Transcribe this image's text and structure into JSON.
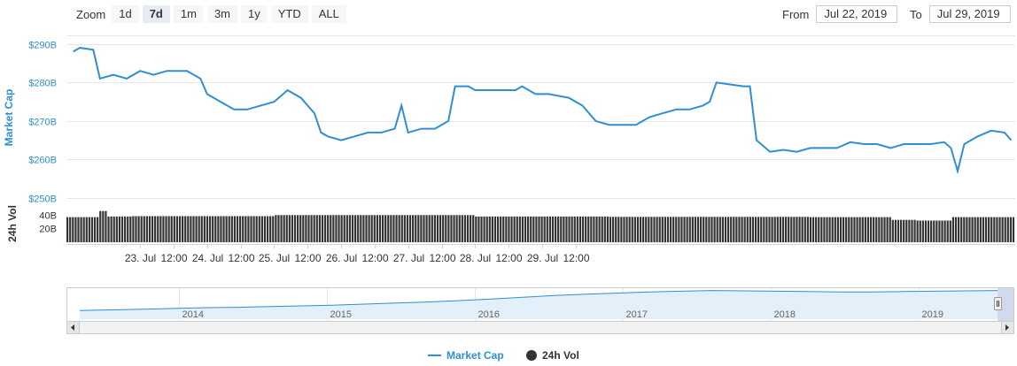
{
  "zoom": {
    "label": "Zoom",
    "buttons": [
      "1d",
      "7d",
      "1m",
      "3m",
      "1y",
      "YTD",
      "ALL"
    ],
    "active": "7d"
  },
  "range": {
    "from_label": "From",
    "from_value": "Jul 22, 2019",
    "to_label": "To",
    "to_value": "Jul 29, 2019"
  },
  "colors": {
    "line": "#2f8fd0",
    "bars": "#333333",
    "axis_text": "#333333",
    "cap_axis_text": "#2f8fd0",
    "grid": "#e6e6e6",
    "navigator_fill": "#e3eff9",
    "navigator_line": "#2f8fd0"
  },
  "chart_data": {
    "type": "line",
    "ylabel": "Market Cap",
    "y_ticks": [
      "$250B",
      "$260B",
      "$270B",
      "$280B",
      "$290B"
    ],
    "ylim": [
      250,
      292
    ],
    "x_ticks": [
      "23. Jul",
      "12:00",
      "24. Jul",
      "12:00",
      "25. Jul",
      "12:00",
      "26. Jul",
      "12:00",
      "27. Jul",
      "12:00",
      "28. Jul",
      "12:00",
      "29. Jul",
      "12:00"
    ],
    "x_days": [
      0.5,
      0.75,
      1.0,
      1.25,
      1.5,
      1.75,
      2.0,
      2.25,
      2.5,
      2.75,
      3.0,
      3.25,
      3.5,
      3.75,
      4.0,
      4.25,
      4.5,
      4.75,
      5.0,
      5.25,
      5.5,
      5.75,
      6.0,
      6.25,
      6.5,
      6.75,
      7.0
    ],
    "series": [
      {
        "name": "Market Cap",
        "points": [
          [
            0.0,
            288
          ],
          [
            0.05,
            289
          ],
          [
            0.15,
            288.5
          ],
          [
            0.2,
            281
          ],
          [
            0.3,
            282
          ],
          [
            0.4,
            281
          ],
          [
            0.5,
            283
          ],
          [
            0.6,
            282
          ],
          [
            0.7,
            283
          ],
          [
            0.85,
            283
          ],
          [
            0.95,
            281
          ],
          [
            1.0,
            277
          ],
          [
            1.1,
            275
          ],
          [
            1.2,
            273
          ],
          [
            1.3,
            273
          ],
          [
            1.4,
            274
          ],
          [
            1.5,
            275
          ],
          [
            1.6,
            278
          ],
          [
            1.7,
            276
          ],
          [
            1.8,
            272
          ],
          [
            1.85,
            267
          ],
          [
            1.9,
            266
          ],
          [
            2.0,
            265
          ],
          [
            2.1,
            266
          ],
          [
            2.2,
            267
          ],
          [
            2.3,
            267
          ],
          [
            2.4,
            268
          ],
          [
            2.45,
            274
          ],
          [
            2.5,
            267
          ],
          [
            2.6,
            268
          ],
          [
            2.7,
            268
          ],
          [
            2.8,
            270
          ],
          [
            2.85,
            279
          ],
          [
            2.95,
            279
          ],
          [
            3.0,
            278
          ],
          [
            3.1,
            278
          ],
          [
            3.2,
            278
          ],
          [
            3.3,
            278
          ],
          [
            3.35,
            279
          ],
          [
            3.45,
            277
          ],
          [
            3.55,
            277
          ],
          [
            3.7,
            276
          ],
          [
            3.8,
            274
          ],
          [
            3.9,
            270
          ],
          [
            4.0,
            269
          ],
          [
            4.1,
            269
          ],
          [
            4.2,
            269
          ],
          [
            4.3,
            271
          ],
          [
            4.4,
            272
          ],
          [
            4.5,
            273
          ],
          [
            4.6,
            273
          ],
          [
            4.7,
            274
          ],
          [
            4.75,
            275
          ],
          [
            4.8,
            280
          ],
          [
            4.9,
            279.5
          ],
          [
            5.0,
            279
          ],
          [
            5.05,
            279
          ],
          [
            5.1,
            265
          ],
          [
            5.2,
            262
          ],
          [
            5.3,
            262.5
          ],
          [
            5.4,
            262
          ],
          [
            5.5,
            263
          ],
          [
            5.6,
            263
          ],
          [
            5.7,
            263
          ],
          [
            5.8,
            264.5
          ],
          [
            5.9,
            264
          ],
          [
            6.0,
            264
          ],
          [
            6.1,
            263
          ],
          [
            6.2,
            264
          ],
          [
            6.3,
            264
          ],
          [
            6.4,
            264
          ],
          [
            6.5,
            264.5
          ],
          [
            6.55,
            263
          ],
          [
            6.6,
            257
          ],
          [
            6.65,
            264
          ],
          [
            6.75,
            266
          ],
          [
            6.85,
            267.5
          ],
          [
            6.95,
            267
          ],
          [
            7.0,
            265
          ]
        ]
      },
      {
        "name": "24h Vol",
        "y_ticks": [
          "20B",
          "40B"
        ],
        "ylabel": "24h Vol",
        "ylim": [
          0,
          60
        ],
        "bar_count": 346,
        "segments": [
          [
            0.0,
            0.2,
            37
          ],
          [
            0.2,
            0.25,
            46
          ],
          [
            0.25,
            0.45,
            38
          ],
          [
            0.45,
            1.5,
            38.5
          ],
          [
            1.5,
            2.0,
            40
          ],
          [
            2.0,
            3.0,
            40
          ],
          [
            3.0,
            4.0,
            38
          ],
          [
            4.0,
            5.5,
            37.5
          ],
          [
            5.5,
            6.1,
            37
          ],
          [
            6.1,
            6.3,
            33
          ],
          [
            6.3,
            6.55,
            32
          ],
          [
            6.55,
            7.0,
            37
          ]
        ]
      }
    ],
    "navigator": {
      "x_ticks": [
        "2014",
        "2015",
        "2016",
        "2017",
        "2018",
        "2019"
      ],
      "values": [
        240,
        260,
        280,
        300,
        320,
        330,
        350,
        370,
        390,
        420,
        450,
        480,
        520,
        560,
        610,
        660,
        700,
        730,
        760,
        780,
        800,
        790,
        780,
        770,
        760,
        760,
        770,
        780,
        790,
        800
      ]
    },
    "legend": [
      "Market Cap",
      "24h Vol"
    ],
    "legend_position": "bottom-center"
  }
}
